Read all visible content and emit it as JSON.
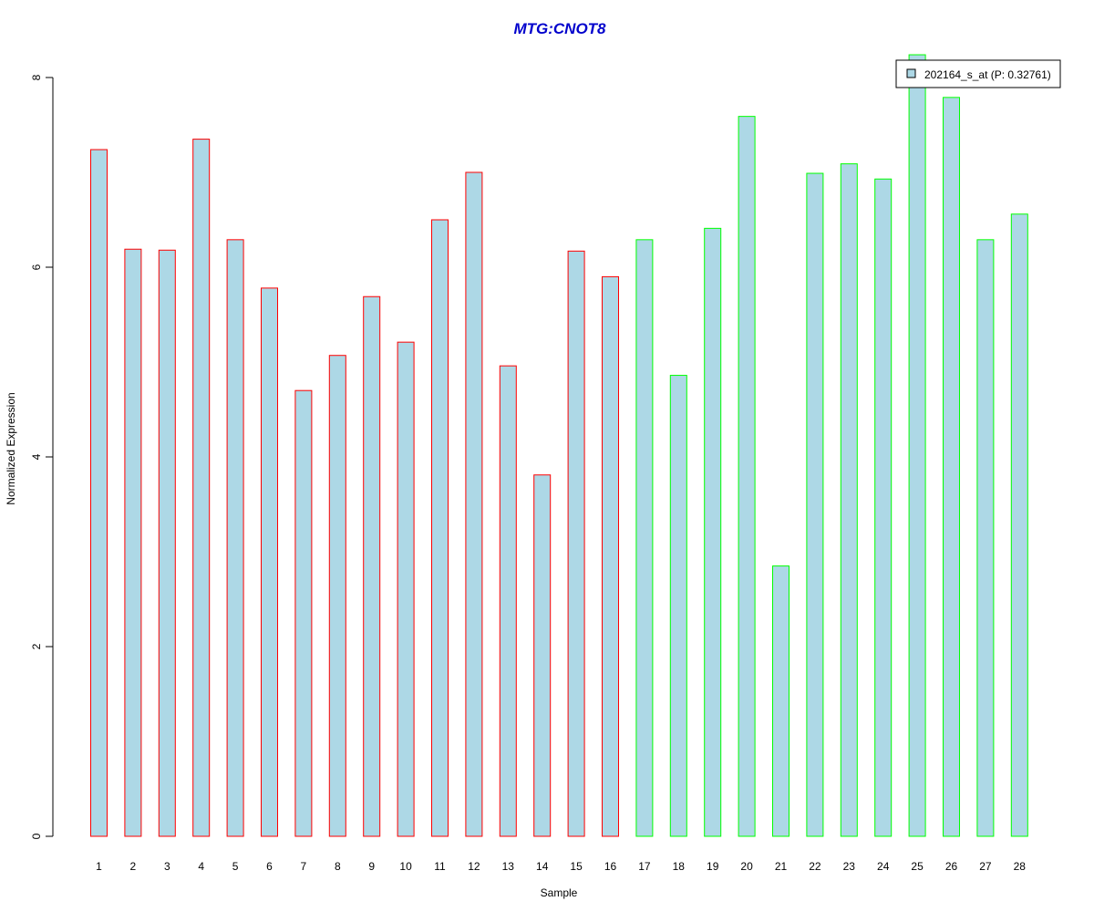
{
  "chart_data": {
    "type": "bar",
    "title": "MTG:CNOT8",
    "title_color": "#0000CC",
    "xlabel": "Sample",
    "ylabel": "Normalized Expression",
    "ylim": [
      0,
      8
    ],
    "yticks": [
      0,
      2,
      4,
      6,
      8
    ],
    "grid": false,
    "legend_placement": "top-right",
    "bar_fill": "#ADD8E6",
    "categories": [
      "1",
      "2",
      "3",
      "4",
      "5",
      "6",
      "7",
      "8",
      "9",
      "10",
      "11",
      "12",
      "13",
      "14",
      "15",
      "16",
      "17",
      "18",
      "19",
      "20",
      "21",
      "22",
      "23",
      "24",
      "25",
      "26",
      "27",
      "28"
    ],
    "series": [
      {
        "name": "202164_s_at (P: 0.32761)",
        "values": [
          7.24,
          6.19,
          6.18,
          7.35,
          6.29,
          5.78,
          4.7,
          5.07,
          5.69,
          5.21,
          6.5,
          7.0,
          4.96,
          3.81,
          6.17,
          5.9,
          6.29,
          4.86,
          6.41,
          7.59,
          2.85,
          6.99,
          7.09,
          6.93,
          8.24,
          7.79,
          6.29,
          6.56
        ]
      }
    ],
    "group_border_colors": [
      "#FF0000",
      "#FF0000",
      "#FF0000",
      "#FF0000",
      "#FF0000",
      "#FF0000",
      "#FF0000",
      "#FF0000",
      "#FF0000",
      "#FF0000",
      "#FF0000",
      "#FF0000",
      "#FF0000",
      "#FF0000",
      "#FF0000",
      "#FF0000",
      "#00FF00",
      "#00FF00",
      "#00FF00",
      "#00FF00",
      "#00FF00",
      "#00FF00",
      "#00FF00",
      "#00FF00",
      "#00FF00",
      "#00FF00",
      "#00FF00",
      "#00FF00"
    ]
  }
}
